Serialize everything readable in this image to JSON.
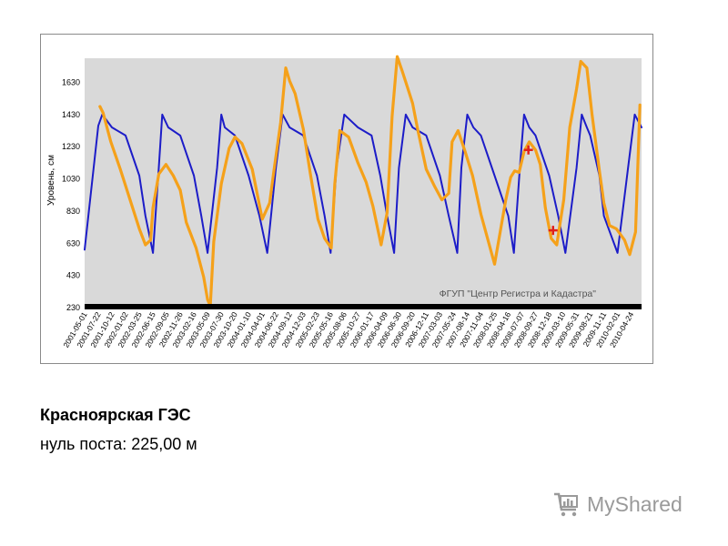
{
  "caption": {
    "title": "Красноярская ГЭС",
    "subtitle": "нуль поста: 225,00 м"
  },
  "logo": {
    "text": "MyShared",
    "icon": "cart-chart-icon"
  },
  "chart_data": {
    "type": "line",
    "title": "",
    "xlabel": "",
    "ylabel": "Уровень, см",
    "ylim": [
      230,
      1780
    ],
    "yticks": [
      230,
      430,
      630,
      830,
      1030,
      1230,
      1430,
      1630
    ],
    "grid": false,
    "watermark": "ФГУП \"Центр Регистра и Кадастра\"",
    "colors": {
      "series_blue": "#1c1cc8",
      "series_orange": "#f5a11a",
      "marker": "#e0201c",
      "plot_bg": "#d9d9d9"
    },
    "x_tick_labels": [
      "2001-05-01",
      "2001-07-22",
      "2001-10-12",
      "2002-01-02",
      "2002-03-25",
      "2002-06-15",
      "2002-09-05",
      "2002-11-26",
      "2003-02-16",
      "2003-05-09",
      "2003-07-30",
      "2003-10-20",
      "2004-01-10",
      "2004-04-01",
      "2004-06-22",
      "2004-09-12",
      "2004-12-03",
      "2005-02-23",
      "2005-05-16",
      "2005-08-06",
      "2005-10-27",
      "2006-01-17",
      "2006-04-09",
      "2006-06-30",
      "2006-09-20",
      "2006-12-11",
      "2007-03-03",
      "2007-05-24",
      "2007-08-14",
      "2007-11-04",
      "2008-01-25",
      "2008-04-16",
      "2008-07-07",
      "2008-09-27",
      "2008-12-18",
      "2009-03-10",
      "2009-05-31",
      "2009-08-21",
      "2009-11-11",
      "2010-02-01",
      "2010-04-24"
    ],
    "series": [
      {
        "color": "#1c1cc8",
        "x": [
          "2001-05-01",
          "2001-07-22",
          "2001-08-15",
          "2001-10-12",
          "2002-01-02",
          "2002-03-25",
          "2002-05-01",
          "2002-06-15",
          "2002-07-20",
          "2002-08-10",
          "2002-09-15",
          "2002-11-26",
          "2003-02-16",
          "2003-04-01",
          "2003-05-09",
          "2003-07-05",
          "2003-07-30",
          "2003-08-20",
          "2003-10-20",
          "2004-01-10",
          "2004-03-15",
          "2004-05-01",
          "2004-06-22",
          "2004-08-01",
          "2004-09-12",
          "2004-12-03",
          "2005-02-23",
          "2005-04-10",
          "2005-05-16",
          "2005-06-20",
          "2005-08-06",
          "2005-10-27",
          "2006-01-17",
          "2006-03-10",
          "2006-04-20",
          "2006-06-01",
          "2006-06-30",
          "2006-08-10",
          "2006-09-20",
          "2006-12-11",
          "2007-03-03",
          "2007-04-25",
          "2007-06-15",
          "2007-07-10",
          "2007-08-14",
          "2007-09-20",
          "2007-11-04",
          "2008-01-25",
          "2008-04-16",
          "2008-05-20",
          "2008-06-25",
          "2008-07-20",
          "2008-08-20",
          "2008-09-27",
          "2008-12-18",
          "2009-02-10",
          "2009-03-25",
          "2009-05-31",
          "2009-07-01",
          "2009-08-01",
          "2009-08-21",
          "2009-10-15",
          "2009-11-11",
          "2010-02-01",
          "2010-04-05",
          "2010-05-15",
          "2010-06-25"
        ],
        "y": [
          590,
          1360,
          1430,
          1350,
          1300,
          1050,
          800,
          570,
          1100,
          1430,
          1350,
          1300,
          1050,
          800,
          570,
          1100,
          1430,
          1350,
          1300,
          1050,
          800,
          570,
          1100,
          1430,
          1350,
          1300,
          1050,
          800,
          570,
          1100,
          1430,
          1350,
          1300,
          1050,
          800,
          570,
          1100,
          1430,
          1350,
          1300,
          1050,
          800,
          570,
          1100,
          1430,
          1350,
          1300,
          1050,
          800,
          570,
          1100,
          1430,
          1350,
          1300,
          1050,
          800,
          570,
          1100,
          1430,
          1350,
          1300,
          1050,
          800,
          570,
          1100,
          1430,
          1350
        ]
      },
      {
        "color": "#f5a11a",
        "x": [
          "2001-08-01",
          "2001-08-20",
          "2001-10-05",
          "2001-12-01",
          "2002-03-25",
          "2002-05-01",
          "2002-06-01",
          "2002-06-15",
          "2002-07-20",
          "2002-09-01",
          "2002-10-15",
          "2002-11-26",
          "2003-01-01",
          "2003-03-01",
          "2003-04-15",
          "2003-05-09",
          "2003-05-25",
          "2003-06-15",
          "2003-07-30",
          "2003-09-15",
          "2003-10-20",
          "2003-12-01",
          "2004-02-01",
          "2004-04-01",
          "2004-05-15",
          "2004-06-10",
          "2004-07-20",
          "2004-08-20",
          "2004-09-12",
          "2004-10-15",
          "2004-12-03",
          "2005-01-15",
          "2005-03-01",
          "2005-04-10",
          "2005-05-20",
          "2005-06-10",
          "2005-07-10",
          "2005-09-01",
          "2005-10-27",
          "2005-12-15",
          "2006-01-25",
          "2006-03-15",
          "2006-04-20",
          "2006-05-20",
          "2006-06-20",
          "2006-07-20",
          "2006-08-20",
          "2006-09-20",
          "2006-10-20",
          "2006-12-11",
          "2007-02-01",
          "2007-03-15",
          "2007-04-25",
          "2007-05-15",
          "2007-06-20",
          "2007-08-01",
          "2007-09-15",
          "2007-11-04",
          "2008-01-25",
          "2008-04-01",
          "2008-05-01",
          "2008-05-25",
          "2008-06-20",
          "2008-07-20",
          "2008-08-20",
          "2008-09-27",
          "2008-10-25",
          "2008-11-25",
          "2008-12-30",
          "2009-02-01",
          "2009-03-15",
          "2009-04-20",
          "2009-05-31",
          "2009-06-25",
          "2009-08-01",
          "2009-09-01",
          "2009-10-15",
          "2009-11-11",
          "2009-12-15",
          "2010-01-25",
          "2010-03-15",
          "2010-04-15",
          "2010-05-20",
          "2010-06-15"
        ],
        "y": [
          1480,
          1440,
          1260,
          1090,
          720,
          620,
          650,
          850,
          1060,
          1120,
          1050,
          960,
          760,
          600,
          420,
          280,
          240,
          640,
          1000,
          1220,
          1290,
          1250,
          1090,
          780,
          880,
          1080,
          1380,
          1720,
          1640,
          1560,
          1340,
          1060,
          780,
          660,
          600,
          1000,
          1330,
          1290,
          1130,
          1010,
          860,
          620,
          820,
          1420,
          1790,
          1700,
          1600,
          1500,
          1340,
          1090,
          980,
          900,
          940,
          1260,
          1330,
          1200,
          1050,
          810,
          500,
          900,
          1040,
          1080,
          1070,
          1200,
          1260,
          1210,
          1120,
          850,
          660,
          620,
          900,
          1350,
          1590,
          1760,
          1720,
          1430,
          1080,
          880,
          740,
          720,
          650,
          560,
          700,
          1490
        ]
      }
    ],
    "markers": [
      {
        "x": "2008-08-15",
        "y": 1210
      },
      {
        "x": "2009-01-10",
        "y": 710
      }
    ]
  }
}
